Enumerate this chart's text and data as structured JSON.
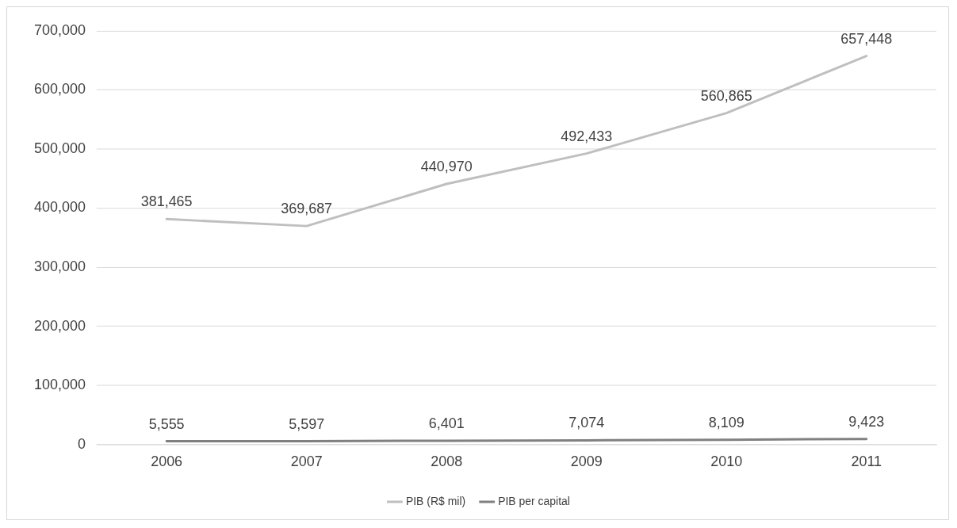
{
  "chart_data": {
    "type": "line",
    "categories": [
      "2006",
      "2007",
      "2008",
      "2009",
      "2010",
      "2011"
    ],
    "series": [
      {
        "name": "PIB (R$ mil)",
        "color": "#bfbfbf",
        "values": [
          381465,
          369687,
          440970,
          492433,
          560865,
          657448
        ],
        "value_labels": [
          "381,465",
          "369,687",
          "440,970",
          "492,433",
          "560,865",
          "657,448"
        ]
      },
      {
        "name": "PIB per capital",
        "color": "#808080",
        "values": [
          5555,
          5597,
          6401,
          7074,
          8109,
          9423
        ],
        "value_labels": [
          "5,555",
          "5,597",
          "6,401",
          "7,074",
          "8,109",
          "9,423"
        ]
      }
    ],
    "ylim": [
      0,
      700000
    ],
    "yticks": [
      {
        "value": 0,
        "label": "0"
      },
      {
        "value": 100000,
        "label": "100,000"
      },
      {
        "value": 200000,
        "label": "200,000"
      },
      {
        "value": 300000,
        "label": "300,000"
      },
      {
        "value": 400000,
        "label": "400,000"
      },
      {
        "value": 500000,
        "label": "500,000"
      },
      {
        "value": 600000,
        "label": "600,000"
      },
      {
        "value": 700000,
        "label": "700,000"
      }
    ],
    "grid": "y",
    "legend": "bottom",
    "marker": "none",
    "line_style": "solid"
  }
}
